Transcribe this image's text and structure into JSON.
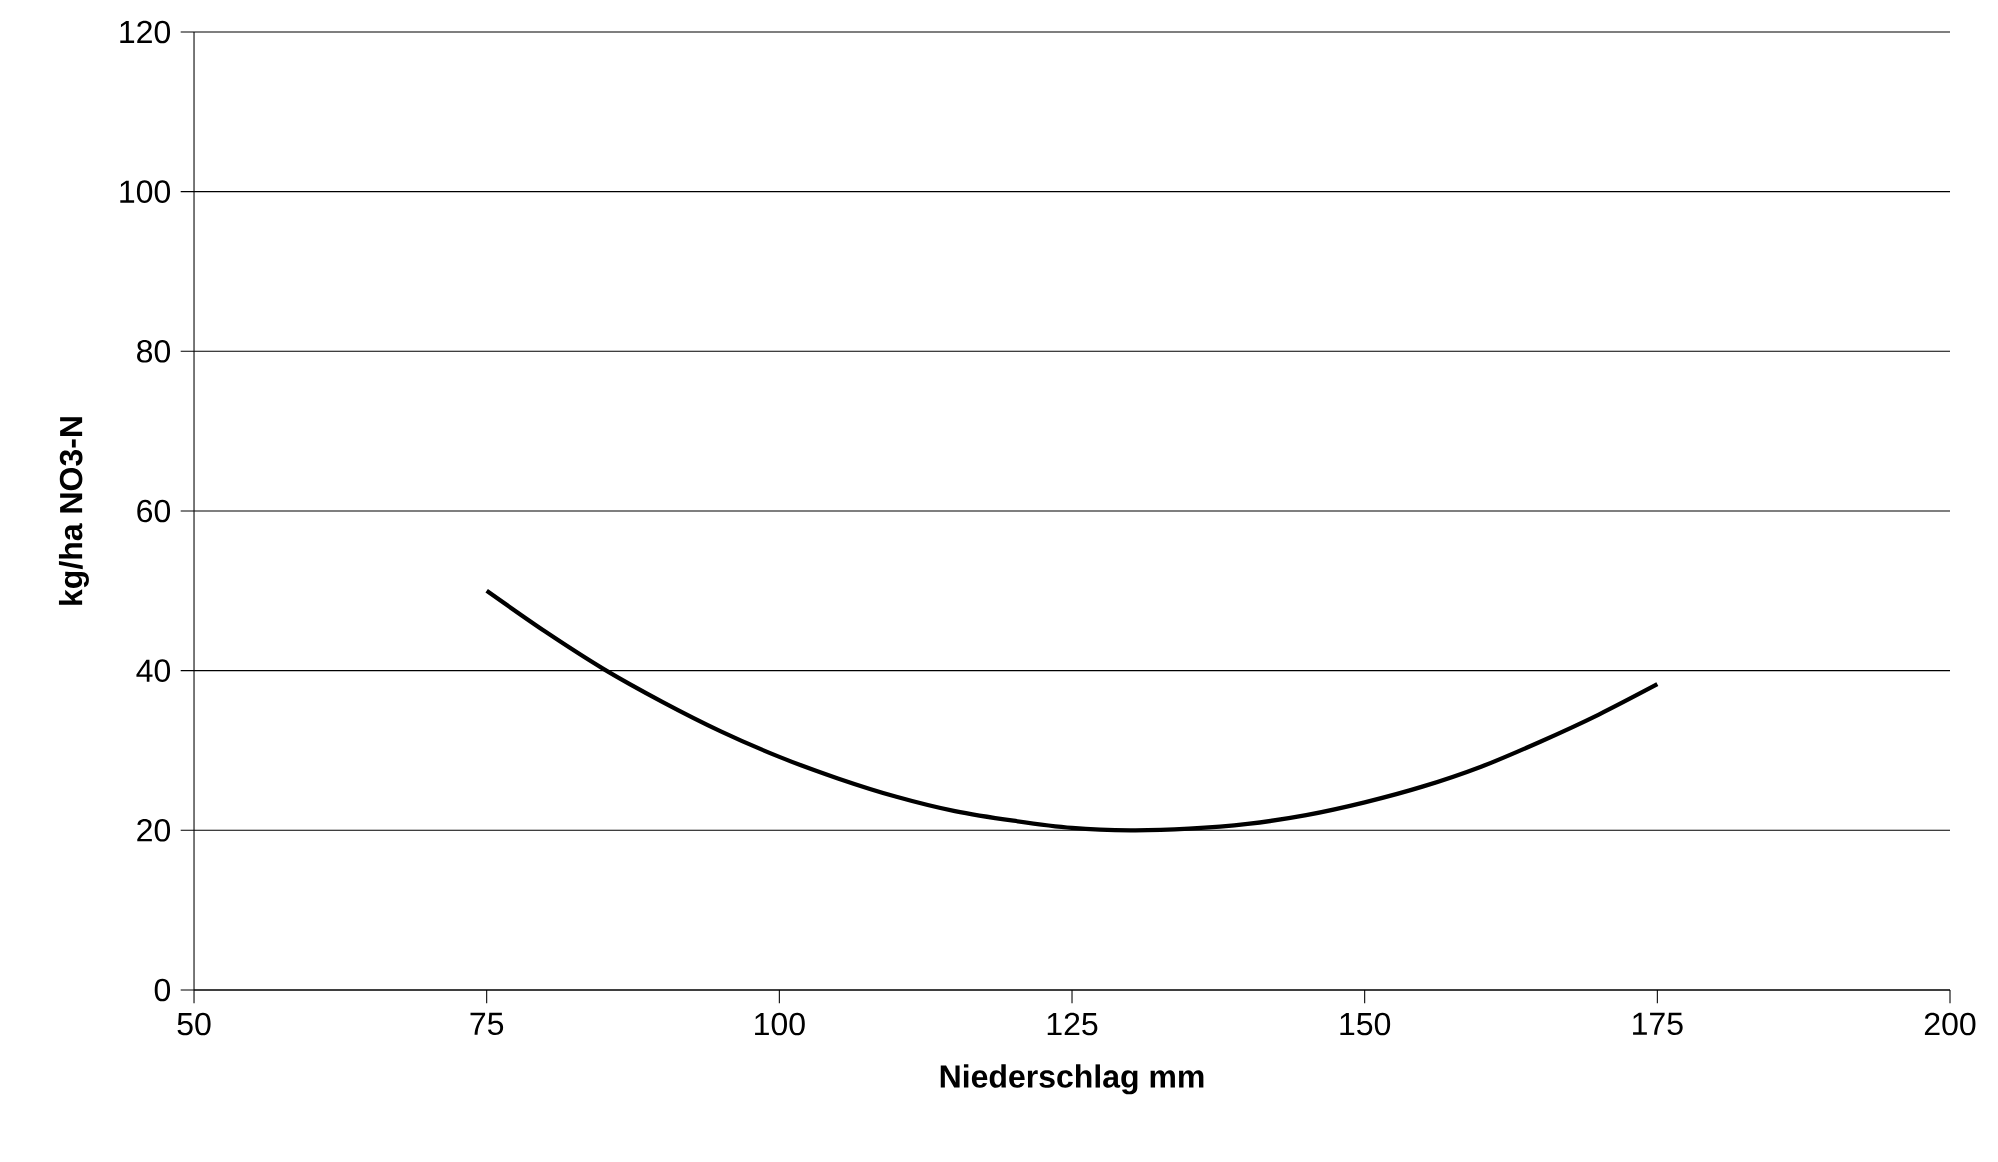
{
  "chart_data": {
    "type": "line",
    "xlabel": "Niederschlag mm",
    "ylabel": "kg/ha NO3-N",
    "x": [
      75,
      80,
      85,
      90,
      95,
      100,
      105,
      110,
      115,
      120,
      125,
      130,
      135,
      140,
      145,
      150,
      155,
      160,
      165,
      170,
      175
    ],
    "series": [
      {
        "color": "#000000",
        "values": [
          50,
          44.9,
          40.2,
          36.1,
          32.4,
          29.2,
          26.5,
          24.2,
          22.4,
          21.2,
          20.3,
          20.0,
          20.2,
          20.8,
          21.9,
          23.5,
          25.5,
          28.0,
          31.1,
          34.5,
          38.3
        ]
      }
    ],
    "xlim": [
      50,
      200
    ],
    "xticks": [
      50,
      75,
      100,
      125,
      150,
      175,
      200
    ],
    "ylim": [
      0,
      120
    ],
    "yticks": [
      0,
      20,
      40,
      60,
      80,
      100,
      120
    ],
    "grid": "y",
    "marker": "none",
    "line_style": "solid"
  }
}
